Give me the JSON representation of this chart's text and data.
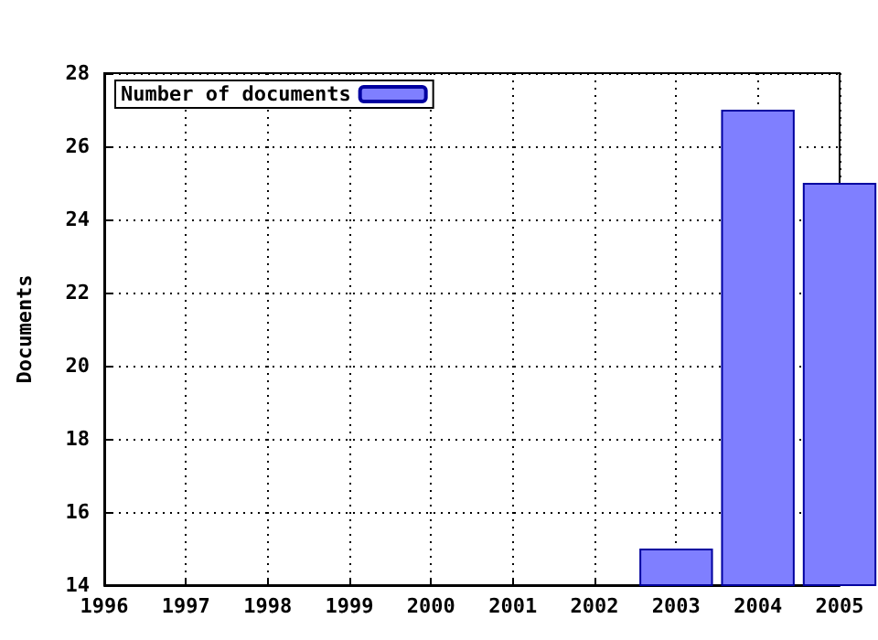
{
  "chart_data": {
    "type": "bar",
    "ylabel": "Documents",
    "x": [
      2003,
      2004,
      2005
    ],
    "series": [
      {
        "name": "Number of documents",
        "color": "#7f7fff",
        "values": [
          15,
          27,
          25
        ]
      }
    ],
    "xlim": [
      1996,
      2005
    ],
    "xticks": [
      1996,
      1997,
      1998,
      1999,
      2000,
      2001,
      2002,
      2003,
      2004,
      2005
    ],
    "ylim": [
      14,
      28
    ],
    "yticks": [
      14,
      16,
      18,
      20,
      22,
      24,
      26,
      28
    ],
    "grid": true,
    "legend": "top left"
  }
}
